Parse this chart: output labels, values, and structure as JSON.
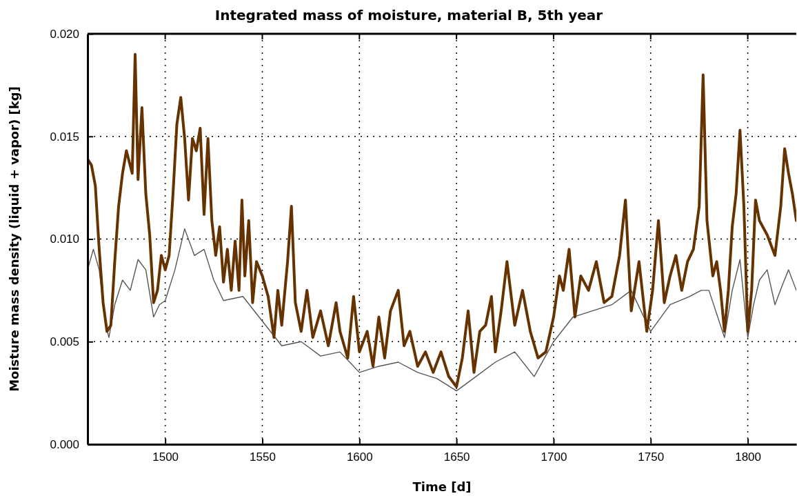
{
  "chart_data": {
    "type": "line",
    "title": "Integrated mass of moisture, material B, 5th year",
    "xlabel": "Time [d]",
    "ylabel": "Moisture mass density (liquid + vapor) [kg]",
    "xlim": [
      1460,
      1825
    ],
    "ylim": [
      0,
      0.02
    ],
    "xticks": [
      1500,
      1550,
      1600,
      1650,
      1700,
      1750,
      1800
    ],
    "yticks": [
      {
        "value": 0,
        "label": "0.000"
      },
      {
        "value": 0.005,
        "label": "0.005"
      },
      {
        "value": 0.01,
        "label": "0.010"
      },
      {
        "value": 0.015,
        "label": "0.015"
      },
      {
        "value": 0.02,
        "label": "0.020"
      }
    ],
    "grid": true,
    "line_style": "solid",
    "marker": "none",
    "series": [
      {
        "color": "#555555",
        "x": [
          1460,
          1463,
          1466,
          1469,
          1471,
          1474,
          1478,
          1482,
          1486,
          1490,
          1494,
          1497,
          1500,
          1505,
          1510,
          1515,
          1520,
          1525,
          1530,
          1540,
          1550,
          1560,
          1570,
          1580,
          1590,
          1600,
          1610,
          1620,
          1630,
          1640,
          1650,
          1660,
          1670,
          1680,
          1690,
          1700,
          1710,
          1720,
          1730,
          1740,
          1750,
          1760,
          1770,
          1776,
          1780,
          1788,
          1792,
          1796,
          1800,
          1803,
          1806,
          1810,
          1814,
          1818,
          1821,
          1825
        ],
        "values": [
          0.0085,
          0.0095,
          0.0085,
          0.006,
          0.0052,
          0.0068,
          0.008,
          0.0075,
          0.009,
          0.0085,
          0.0062,
          0.0068,
          0.007,
          0.0085,
          0.0105,
          0.0092,
          0.0095,
          0.008,
          0.007,
          0.0072,
          0.006,
          0.0048,
          0.005,
          0.0043,
          0.0045,
          0.0035,
          0.0038,
          0.004,
          0.0035,
          0.0032,
          0.0026,
          0.0033,
          0.004,
          0.0045,
          0.0033,
          0.005,
          0.0062,
          0.0065,
          0.0068,
          0.0075,
          0.0055,
          0.0068,
          0.0072,
          0.0075,
          0.0075,
          0.0052,
          0.0075,
          0.009,
          0.0052,
          0.0068,
          0.008,
          0.0085,
          0.0068,
          0.0078,
          0.0085,
          0.0075
        ]
      },
      {
        "color": "#663300",
        "x": [
          1460,
          1462,
          1464,
          1466,
          1468,
          1470,
          1472,
          1474,
          1476,
          1478,
          1480,
          1483,
          1484.5,
          1486,
          1488,
          1490,
          1492,
          1494,
          1496,
          1498,
          1500,
          1502,
          1504,
          1506,
          1508,
          1510,
          1512,
          1514,
          1516,
          1518,
          1520,
          1522,
          1524,
          1526,
          1528,
          1530,
          1532,
          1534,
          1536,
          1538,
          1539.5,
          1541,
          1543,
          1545,
          1547,
          1550,
          1553,
          1556,
          1558,
          1560,
          1563,
          1565,
          1567,
          1570,
          1573,
          1576,
          1580,
          1584,
          1588,
          1590,
          1594,
          1597,
          1600,
          1604,
          1607,
          1610,
          1613,
          1616,
          1620,
          1623,
          1626,
          1630,
          1634,
          1638,
          1642,
          1646,
          1650,
          1653,
          1656,
          1659,
          1662,
          1665,
          1668,
          1670,
          1673,
          1676,
          1680,
          1684,
          1688,
          1692,
          1696,
          1700,
          1703,
          1705,
          1708,
          1711,
          1714,
          1718,
          1722,
          1726,
          1730,
          1734,
          1737,
          1740,
          1744,
          1748,
          1751,
          1754,
          1757,
          1760,
          1763,
          1766,
          1769,
          1772,
          1775,
          1777,
          1779,
          1782,
          1784,
          1786,
          1788,
          1790,
          1792,
          1794,
          1796,
          1798,
          1800,
          1802,
          1804,
          1806,
          1810,
          1814,
          1817,
          1819,
          1821,
          1823,
          1825
        ],
        "values": [
          0.0139,
          0.0136,
          0.0126,
          0.0095,
          0.0069,
          0.0055,
          0.0058,
          0.0089,
          0.0116,
          0.0132,
          0.0143,
          0.0132,
          0.019,
          0.0129,
          0.0164,
          0.0122,
          0.0102,
          0.0069,
          0.0075,
          0.0092,
          0.0085,
          0.0092,
          0.0122,
          0.0156,
          0.0169,
          0.0149,
          0.0119,
          0.0149,
          0.0143,
          0.0154,
          0.0112,
          0.0149,
          0.0109,
          0.0092,
          0.0106,
          0.0079,
          0.0095,
          0.0075,
          0.0099,
          0.0075,
          0.0119,
          0.0082,
          0.0109,
          0.0069,
          0.0089,
          0.0082,
          0.0072,
          0.0052,
          0.0075,
          0.0058,
          0.0089,
          0.0116,
          0.0069,
          0.0055,
          0.0075,
          0.0052,
          0.0065,
          0.0048,
          0.0069,
          0.0055,
          0.0042,
          0.0072,
          0.0045,
          0.0055,
          0.0038,
          0.0062,
          0.0042,
          0.0065,
          0.0075,
          0.0048,
          0.0055,
          0.0038,
          0.0045,
          0.0035,
          0.0045,
          0.0033,
          0.0028,
          0.0042,
          0.0065,
          0.0035,
          0.0055,
          0.0058,
          0.0072,
          0.0045,
          0.0065,
          0.0089,
          0.0058,
          0.0075,
          0.0055,
          0.0042,
          0.0045,
          0.0062,
          0.0082,
          0.0075,
          0.0095,
          0.0062,
          0.0082,
          0.0075,
          0.0089,
          0.0069,
          0.0072,
          0.0092,
          0.0119,
          0.0065,
          0.0089,
          0.0055,
          0.0075,
          0.0109,
          0.0069,
          0.0082,
          0.0092,
          0.0075,
          0.0089,
          0.0095,
          0.0116,
          0.018,
          0.0109,
          0.0082,
          0.0089,
          0.0075,
          0.0055,
          0.0075,
          0.0106,
          0.0122,
          0.0153,
          0.0116,
          0.0055,
          0.0075,
          0.0119,
          0.0109,
          0.0102,
          0.0092,
          0.0116,
          0.0144,
          0.0132,
          0.0122,
          0.0109
        ]
      }
    ]
  }
}
